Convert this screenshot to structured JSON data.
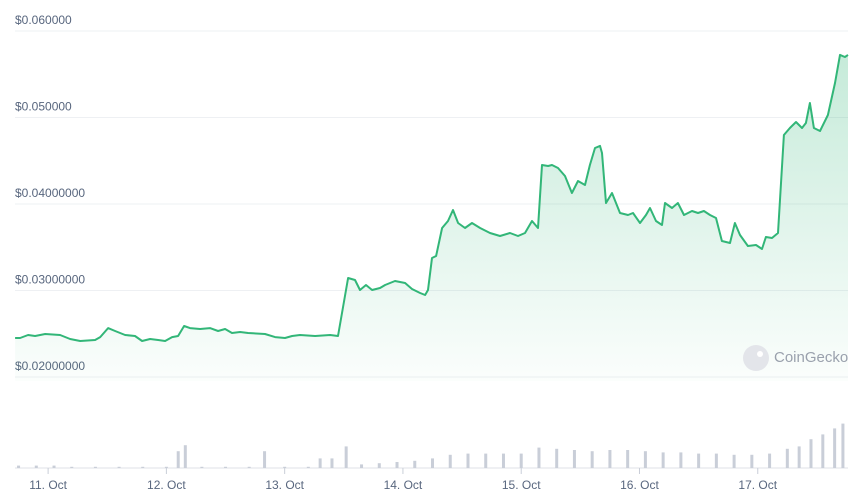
{
  "chart_data": [
    {
      "type": "line",
      "color": "#32b678",
      "grid": true,
      "watermark": "CoinGecko",
      "xlim": [
        10.72,
        17.763
      ],
      "xticks": [
        {
          "value": 11,
          "label": "11. Oct"
        },
        {
          "value": 12,
          "label": "12. Oct"
        },
        {
          "value": 13,
          "label": "13. Oct"
        },
        {
          "value": 14,
          "label": "14. Oct"
        },
        {
          "value": 15,
          "label": "15. Oct"
        },
        {
          "value": 16,
          "label": "16. Oct"
        },
        {
          "value": 17,
          "label": "17. Oct"
        }
      ],
      "ylim": [
        0.01954,
        0.0615
      ],
      "yticks": [
        {
          "value": 0.02,
          "label": "$0.02000000"
        },
        {
          "value": 0.03,
          "label": "$0.03000000"
        },
        {
          "value": 0.04,
          "label": "$0.04000000"
        },
        {
          "value": 0.05,
          "label": "$0.050000"
        },
        {
          "value": 0.06,
          "label": "$0.060000"
        }
      ],
      "x": [
        10.721,
        10.763,
        10.831,
        10.89,
        10.975,
        11.101,
        11.186,
        11.271,
        11.397,
        11.44,
        11.507,
        11.566,
        11.651,
        11.735,
        11.795,
        11.862,
        11.93,
        11.989,
        12.048,
        12.099,
        12.15,
        12.2,
        12.285,
        12.369,
        12.437,
        12.496,
        12.555,
        12.623,
        12.691,
        12.834,
        12.919,
        13.003,
        13.063,
        13.13,
        13.257,
        13.384,
        13.451,
        13.536,
        13.595,
        13.637,
        13.688,
        13.739,
        13.806,
        13.849,
        13.933,
        14.018,
        14.077,
        14.145,
        14.187,
        14.212,
        14.246,
        14.28,
        14.331,
        14.381,
        14.423,
        14.466,
        14.525,
        14.584,
        14.652,
        14.736,
        14.821,
        14.905,
        14.973,
        15.032,
        15.091,
        15.142,
        15.176,
        15.227,
        15.26,
        15.311,
        15.37,
        15.429,
        15.48,
        15.539,
        15.581,
        15.624,
        15.666,
        15.683,
        15.717,
        15.768,
        15.835,
        15.903,
        15.945,
        16.004,
        16.055,
        16.089,
        16.14,
        16.19,
        16.216,
        16.275,
        16.325,
        16.376,
        16.444,
        16.495,
        16.545,
        16.596,
        16.647,
        16.697,
        16.765,
        16.807,
        16.85,
        16.917,
        16.985,
        17.036,
        17.069,
        17.12,
        17.171,
        17.221,
        17.272,
        17.323,
        17.374,
        17.407,
        17.441,
        17.475,
        17.526,
        17.593,
        17.653,
        17.695,
        17.737,
        17.763
      ],
      "values": [
        0.02451,
        0.02451,
        0.02486,
        0.02474,
        0.02497,
        0.02486,
        0.02439,
        0.02416,
        0.02428,
        0.02462,
        0.02566,
        0.02532,
        0.02486,
        0.02474,
        0.02416,
        0.02439,
        0.02428,
        0.02416,
        0.02462,
        0.02474,
        0.0259,
        0.02566,
        0.02555,
        0.02566,
        0.02532,
        0.02555,
        0.02509,
        0.0252,
        0.02509,
        0.02497,
        0.02462,
        0.02451,
        0.02474,
        0.02486,
        0.02474,
        0.02486,
        0.02474,
        0.03145,
        0.03121,
        0.03006,
        0.03064,
        0.03006,
        0.03029,
        0.03064,
        0.0311,
        0.03087,
        0.03017,
        0.02971,
        0.02948,
        0.03006,
        0.03376,
        0.03399,
        0.03723,
        0.03803,
        0.03931,
        0.0378,
        0.03723,
        0.0378,
        0.03723,
        0.03665,
        0.0363,
        0.03665,
        0.0363,
        0.03665,
        0.03803,
        0.03723,
        0.04451,
        0.04439,
        0.04451,
        0.04416,
        0.04324,
        0.04127,
        0.04266,
        0.0422,
        0.04451,
        0.04647,
        0.04671,
        0.0459,
        0.04012,
        0.04127,
        0.03896,
        0.03873,
        0.03896,
        0.0378,
        0.03873,
        0.03954,
        0.03803,
        0.03757,
        0.04012,
        0.03954,
        0.04012,
        0.03873,
        0.03919,
        0.03896,
        0.03919,
        0.03873,
        0.03838,
        0.03572,
        0.03549,
        0.0378,
        0.03642,
        0.03514,
        0.03526,
        0.0348,
        0.03618,
        0.03607,
        0.03665,
        0.04798,
        0.04879,
        0.04948,
        0.04879,
        0.04936,
        0.05168,
        0.04879,
        0.04844,
        0.05029,
        0.05399,
        0.05723,
        0.05699,
        0.05723
      ]
    },
    {
      "type": "bar",
      "color": "#c9ced8",
      "xlim": [
        10.72,
        17.763
      ],
      "ylim": [
        0,
        40
      ],
      "x": [
        10.75,
        10.9,
        11.05,
        11.2,
        11.4,
        11.6,
        11.8,
        12.0,
        12.1,
        12.16,
        12.3,
        12.5,
        12.7,
        12.83,
        13.0,
        13.2,
        13.3,
        13.4,
        13.52,
        13.65,
        13.8,
        13.95,
        14.1,
        14.25,
        14.4,
        14.55,
        14.7,
        14.85,
        15.0,
        15.15,
        15.3,
        15.45,
        15.6,
        15.75,
        15.9,
        16.05,
        16.2,
        16.35,
        16.5,
        16.65,
        16.8,
        16.95,
        17.1,
        17.25,
        17.35,
        17.45,
        17.55,
        17.65,
        17.72
      ],
      "values": [
        2,
        2,
        2,
        1,
        1,
        1,
        1,
        1,
        14,
        19,
        1,
        1,
        1,
        14,
        1,
        1,
        8,
        8,
        18,
        3,
        4,
        5,
        6,
        8,
        11,
        12,
        12,
        12,
        12,
        17,
        16,
        15,
        14,
        15,
        15,
        14,
        13,
        13,
        12,
        12,
        11,
        11,
        12,
        16,
        18,
        24,
        28,
        33,
        37
      ]
    }
  ]
}
